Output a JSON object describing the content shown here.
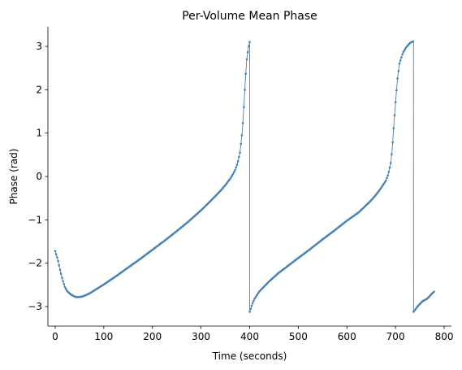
{
  "chart_data": {
    "type": "line",
    "title": "Per-Volume Mean Phase",
    "xlabel": "Time (seconds)",
    "ylabel": "Phase (rad)",
    "xlim": [
      -15,
      815
    ],
    "ylim": [
      -3.45,
      3.45
    ],
    "xticks": [
      0,
      100,
      200,
      300,
      400,
      500,
      600,
      700,
      800
    ],
    "yticks": [
      -3,
      -2,
      -1,
      0,
      1,
      2,
      3
    ],
    "xtick_labels": [
      "0",
      "100",
      "200",
      "300",
      "400",
      "500",
      "600",
      "700",
      "800"
    ],
    "ytick_labels": [
      "−3",
      "−2",
      "−1",
      "0",
      "1",
      "2",
      "3"
    ],
    "grid": false,
    "line_color": "#4682b4",
    "markers": true,
    "sample_interval": 2,
    "series": [
      {
        "points": [
          [
            0,
            -1.72
          ],
          [
            5,
            -1.9
          ],
          [
            10,
            -2.15
          ],
          [
            15,
            -2.38
          ],
          [
            20,
            -2.55
          ],
          [
            25,
            -2.65
          ],
          [
            30,
            -2.7
          ],
          [
            35,
            -2.74
          ],
          [
            40,
            -2.77
          ],
          [
            45,
            -2.78
          ],
          [
            50,
            -2.78
          ],
          [
            55,
            -2.77
          ],
          [
            60,
            -2.75
          ],
          [
            70,
            -2.7
          ],
          [
            80,
            -2.63
          ],
          [
            100,
            -2.49
          ],
          [
            125,
            -2.3
          ],
          [
            150,
            -2.1
          ],
          [
            175,
            -1.9
          ],
          [
            200,
            -1.69
          ],
          [
            225,
            -1.48
          ],
          [
            250,
            -1.26
          ],
          [
            275,
            -1.03
          ],
          [
            300,
            -0.78
          ],
          [
            320,
            -0.56
          ],
          [
            340,
            -0.33
          ],
          [
            350,
            -0.2
          ],
          [
            360,
            -0.05
          ],
          [
            365,
            0.04
          ],
          [
            370,
            0.15
          ],
          [
            375,
            0.3
          ],
          [
            380,
            0.55
          ],
          [
            385,
            1.05
          ],
          [
            388,
            1.6
          ],
          [
            391,
            2.2
          ],
          [
            394,
            2.7
          ],
          [
            397,
            2.95
          ],
          [
            400,
            3.1
          ],
          [
            400.1,
            -3.12
          ],
          [
            405,
            -2.95
          ],
          [
            410,
            -2.82
          ],
          [
            420,
            -2.65
          ],
          [
            440,
            -2.42
          ],
          [
            460,
            -2.22
          ],
          [
            480,
            -2.05
          ],
          [
            500,
            -1.88
          ],
          [
            525,
            -1.67
          ],
          [
            550,
            -1.45
          ],
          [
            575,
            -1.24
          ],
          [
            600,
            -1.02
          ],
          [
            625,
            -0.82
          ],
          [
            650,
            -0.55
          ],
          [
            660,
            -0.42
          ],
          [
            670,
            -0.27
          ],
          [
            680,
            -0.1
          ],
          [
            685,
            0.05
          ],
          [
            690,
            0.3
          ],
          [
            693,
            0.6
          ],
          [
            696,
            1.1
          ],
          [
            700,
            1.7
          ],
          [
            704,
            2.25
          ],
          [
            708,
            2.6
          ],
          [
            715,
            2.85
          ],
          [
            722,
            2.98
          ],
          [
            730,
            3.08
          ],
          [
            737,
            3.12
          ],
          [
            737.1,
            -3.12
          ],
          [
            745,
            -3.0
          ],
          [
            755,
            -2.88
          ],
          [
            765,
            -2.82
          ],
          [
            775,
            -2.7
          ],
          [
            780,
            -2.65
          ]
        ]
      }
    ]
  }
}
